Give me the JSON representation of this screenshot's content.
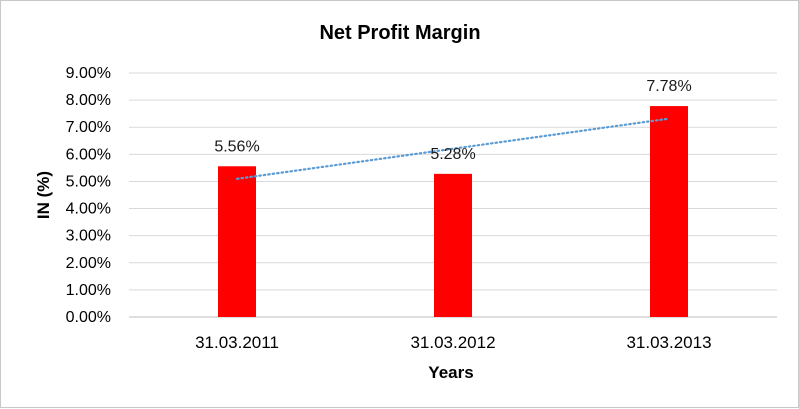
{
  "chart_data": {
    "type": "bar",
    "title": "Net Profit Margin",
    "xlabel": "Years",
    "ylabel": "IN (%)",
    "categories": [
      "31.03.2011",
      "31.03.2012",
      "31.03.2013"
    ],
    "values": [
      5.56,
      5.28,
      7.78
    ],
    "data_labels": [
      "5.56%",
      "5.28%",
      "7.78%"
    ],
    "ylim": [
      0,
      9
    ],
    "ytick_values": [
      0,
      1,
      2,
      3,
      4,
      5,
      6,
      7,
      8,
      9
    ],
    "ytick_labels": [
      "0.00%",
      "1.00%",
      "2.00%",
      "3.00%",
      "4.00%",
      "5.00%",
      "6.00%",
      "7.00%",
      "8.00%",
      "9.00%"
    ],
    "bar_color": "#ff0000",
    "trendline": {
      "type": "linear",
      "color": "#5b9bd5",
      "style": "dotted"
    },
    "grid": true,
    "legend": false
  }
}
